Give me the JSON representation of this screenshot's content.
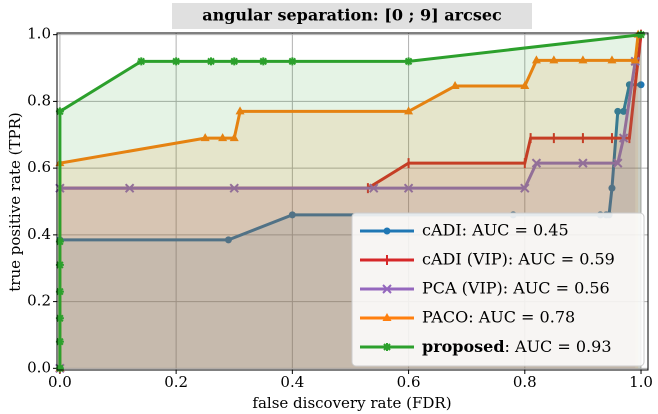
{
  "chart_data": {
    "type": "line",
    "title": "angular separation: [0 ; 9] arcsec",
    "x_label": "false discovery rate (FDR)",
    "y_label": "true positive rate (TPR)",
    "xlim": [
      -0.005,
      1.012
    ],
    "ylim": [
      -0.005,
      1.005
    ],
    "xticks": [
      {
        "value": 0,
        "label": "0.0"
      },
      {
        "value": 0.2,
        "label": "0.2"
      },
      {
        "value": 0.4,
        "label": "0.4"
      },
      {
        "value": 0.6,
        "label": "0.6"
      },
      {
        "value": 0.8,
        "label": "0.8"
      },
      {
        "value": 1,
        "label": "1.0"
      }
    ],
    "yticks": [
      {
        "value": 0,
        "label": "0.0"
      },
      {
        "value": 0.2,
        "label": "0.2"
      },
      {
        "value": 0.4,
        "label": "0.4"
      },
      {
        "value": 0.6,
        "label": "0.6"
      },
      {
        "value": 0.8,
        "label": "0.8"
      },
      {
        "value": 1,
        "label": "1.0"
      }
    ],
    "grid": true,
    "legend": "lower right",
    "fill_below": true,
    "series": [
      {
        "name": "cADI: AUC = 0.45",
        "color": "#1f77b4",
        "marker": "circle",
        "x": [
          0,
          0,
          0.29,
          0.4,
          0.78,
          0.93,
          0.94,
          0.945,
          0.95,
          0.96,
          0.97,
          0.98,
          1.0
        ],
        "values": [
          0,
          0.385,
          0.385,
          0.46,
          0.46,
          0.46,
          0.46,
          0.46,
          0.54,
          0.77,
          0.77,
          0.85,
          0.85
        ]
      },
      {
        "name": "cADI (VIP): AUC = 0.59",
        "color": "#d62728",
        "marker": "vline",
        "x": [
          0,
          0,
          0.53,
          0.6,
          0.8,
          0.81,
          0.85,
          0.9,
          0.95,
          0.98,
          0.99,
          1.0
        ],
        "values": [
          0,
          0.54,
          0.54,
          0.615,
          0.615,
          0.69,
          0.69,
          0.69,
          0.69,
          0.69,
          0.85,
          1.0
        ]
      },
      {
        "name": "PCA (VIP): AUC = 0.56",
        "color": "#9467bd",
        "marker": "cross",
        "x": [
          0,
          0,
          0.12,
          0.3,
          0.54,
          0.6,
          0.8,
          0.82,
          0.9,
          0.96,
          0.97,
          0.99
        ],
        "values": [
          0,
          0.54,
          0.54,
          0.54,
          0.54,
          0.54,
          0.54,
          0.615,
          0.615,
          0.615,
          0.69,
          0.92
        ]
      },
      {
        "name": "PACO: AUC = 0.78",
        "color": "#ff7f0e",
        "marker": "triangle",
        "x": [
          0,
          0,
          0.25,
          0.28,
          0.3,
          0.31,
          0.6,
          0.68,
          0.8,
          0.82,
          0.85,
          0.9,
          0.95,
          0.99,
          0.995
        ],
        "values": [
          0,
          0.615,
          0.69,
          0.69,
          0.69,
          0.77,
          0.77,
          0.846,
          0.846,
          0.923,
          0.923,
          0.923,
          0.923,
          0.923,
          1.0
        ]
      },
      {
        "name": "proposed: AUC = 0.93",
        "color": "#2ca02c",
        "marker": "star",
        "bold_prefix": true,
        "x": [
          0,
          0,
          0,
          0,
          0,
          0,
          0,
          0.14,
          0.2,
          0.26,
          0.3,
          0.35,
          0.4,
          0.6,
          1.0
        ],
        "values": [
          0,
          0.08,
          0.15,
          0.23,
          0.31,
          0.38,
          0.77,
          0.92,
          0.92,
          0.92,
          0.92,
          0.92,
          0.92,
          0.92,
          1.0
        ]
      }
    ]
  }
}
